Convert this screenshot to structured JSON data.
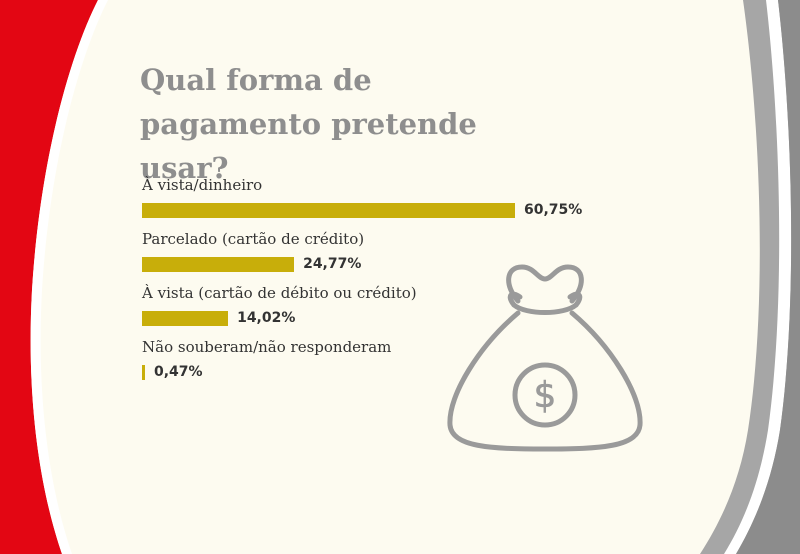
{
  "title": "Qual forma de pagamento pretende usar?",
  "colors": {
    "bar": "#c8ae0a",
    "title": "#8e8e8e",
    "text": "#333333",
    "red_stripe": "#e30613",
    "gray_stripe": "#a6a6a6",
    "background": "#fdfbf0"
  },
  "icon": "money-bag-dollar-icon",
  "chart_data": {
    "type": "bar",
    "orientation": "horizontal",
    "title": "Qual forma de pagamento pretende usar?",
    "categories": [
      "À vista/dinheiro",
      "Parcelado (cartão de crédito)",
      "À vista (cartão de débito ou crédito)",
      "Não souberam/não responderam"
    ],
    "values": [
      60.75,
      24.77,
      14.02,
      0.47
    ],
    "value_labels": [
      "60,75%",
      "24,77%",
      "14,02%",
      "0,47%"
    ],
    "unit": "%",
    "xlim": [
      0,
      100
    ],
    "grid": false,
    "legend": "none"
  }
}
